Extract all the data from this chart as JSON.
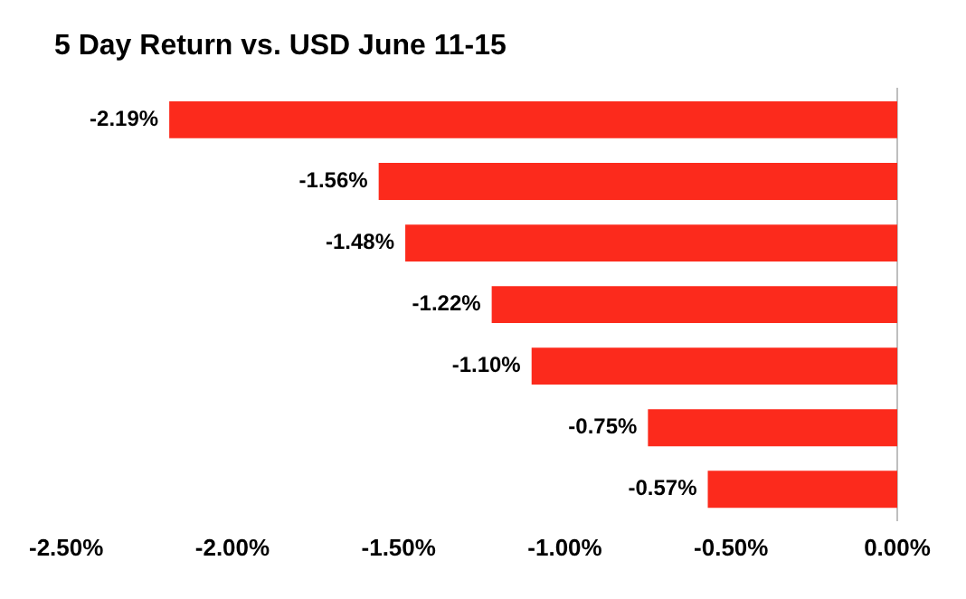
{
  "chart_data": {
    "type": "bar",
    "orientation": "horizontal",
    "title": "5 Day Return vs. USD June 11-15",
    "categories": [
      null,
      null,
      null,
      null,
      null,
      null,
      null
    ],
    "values": [
      -2.19,
      -1.56,
      -1.48,
      -1.22,
      -1.1,
      -0.75,
      -0.57
    ],
    "value_labels": [
      "-2.19%",
      "-1.56%",
      "-1.48%",
      "-1.22%",
      "-1.10%",
      "-0.75%",
      "-0.57%"
    ],
    "color": "#fc2a1c",
    "xlim": [
      -2.5,
      0
    ],
    "xticks": [
      {
        "value": -2.5,
        "label": "-2.50%"
      },
      {
        "value": -2,
        "label": "-2.00%"
      },
      {
        "value": -1.5,
        "label": "-1.50%"
      },
      {
        "value": -1,
        "label": "-1.00%"
      },
      {
        "value": -0.5,
        "label": "-0.50%"
      },
      {
        "value": 0,
        "label": "0.00%"
      }
    ],
    "grid": false,
    "legend": false
  }
}
